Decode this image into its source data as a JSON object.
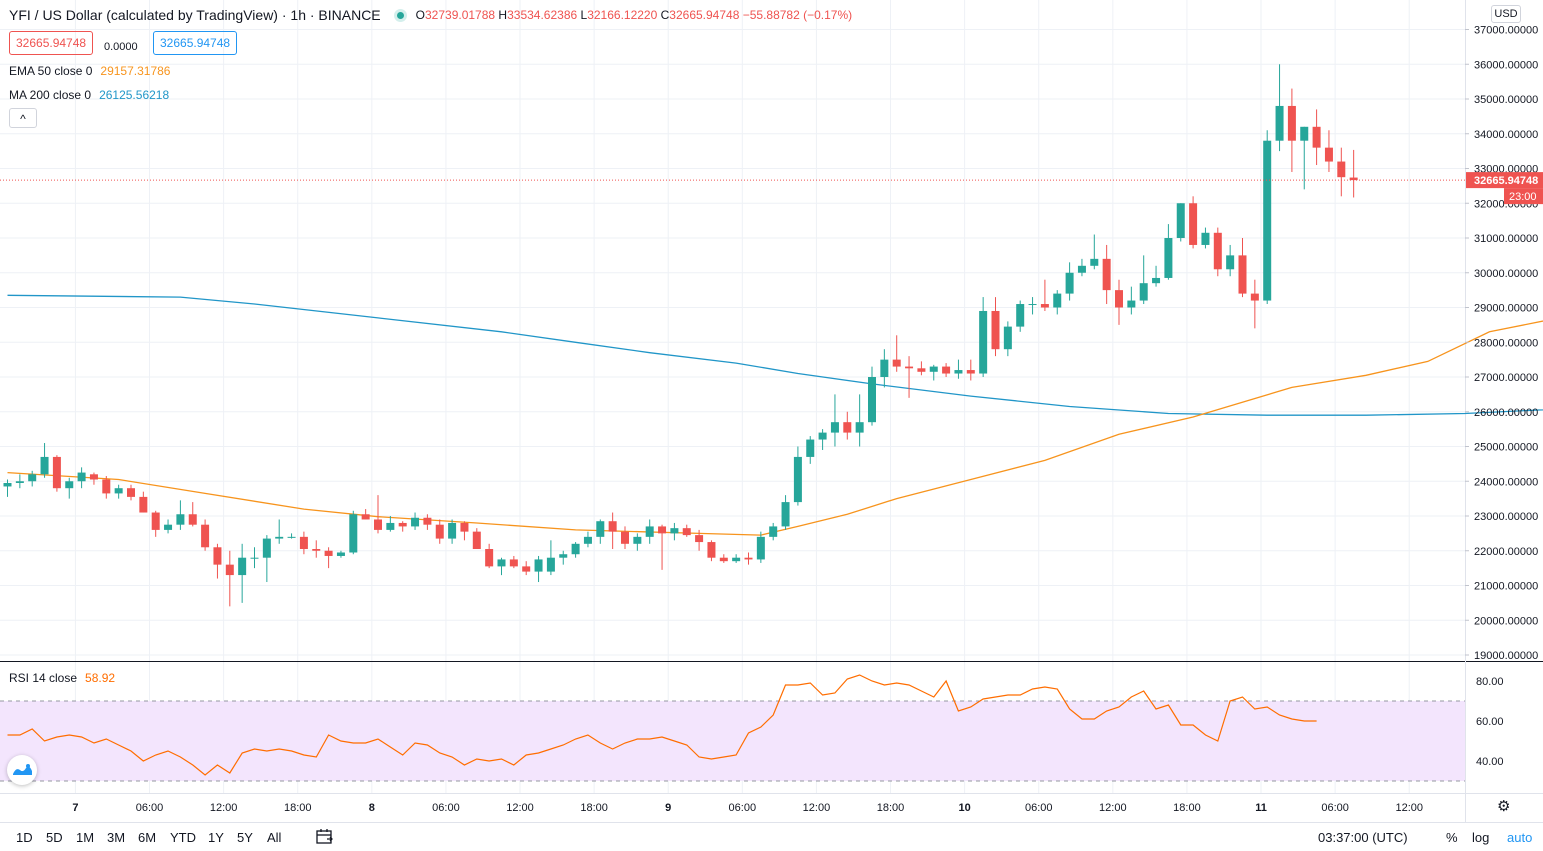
{
  "header": {
    "title": "YFI / US Dollar (calculated by TradingView) · 1h · BINANCE",
    "open_label": "O",
    "open": "32739.01788",
    "high_label": "H",
    "high": "33534.62386",
    "low_label": "L",
    "low": "32166.12220",
    "close_label": "C",
    "close": "32665.94748",
    "change": "−55.88782 (−0.17%)"
  },
  "price_boxes": {
    "bid": "32665.94748",
    "spread": "0.0000",
    "ask": "32665.94748"
  },
  "indicators": [
    {
      "name": "EMA 50 close 0",
      "value": "29157.31786",
      "color": "#f7941d"
    },
    {
      "name": "MA 200 close 0",
      "value": "26125.56218",
      "color": "#2196c8"
    }
  ],
  "collapse_icon": "chevron-up-icon",
  "collapse_glyph": "^",
  "currency": "USD",
  "last_price_label": "32665.94748",
  "countdown": "23:00",
  "rsi": {
    "name": "RSI 14 close",
    "value": "58.92"
  },
  "time_axis": [
    {
      "label": "7",
      "bold": true
    },
    {
      "label": "06:00"
    },
    {
      "label": "12:00"
    },
    {
      "label": "18:00"
    },
    {
      "label": "8",
      "bold": true
    },
    {
      "label": "06:00"
    },
    {
      "label": "12:00"
    },
    {
      "label": "18:00"
    },
    {
      "label": "9",
      "bold": true
    },
    {
      "label": "06:00"
    },
    {
      "label": "12:00"
    },
    {
      "label": "18:00"
    },
    {
      "label": "10",
      "bold": true
    },
    {
      "label": "06:00"
    },
    {
      "label": "12:00"
    },
    {
      "label": "18:00"
    },
    {
      "label": "11",
      "bold": true
    },
    {
      "label": "06:00"
    },
    {
      "label": "12:00"
    }
  ],
  "bottom_bar": {
    "ranges": [
      "1D",
      "5D",
      "1M",
      "3M",
      "6M",
      "YTD",
      "1Y",
      "5Y",
      "All"
    ],
    "time": "03:37:00 (UTC)",
    "percent": "%",
    "log": "log",
    "auto": "auto"
  },
  "colors": {
    "up": "#26a69a",
    "down": "#ef5350",
    "ema": "#f7941d",
    "ma": "#2196c8",
    "rsi": "#ff6d00",
    "rsi_band": "#f3e5fd"
  },
  "chart_data": {
    "type": "candlestick",
    "symbol": "YFI/USD",
    "interval": "1h",
    "y_ticks": [
      "37000.00000",
      "36000.00000",
      "35000.00000",
      "34000.00000",
      "33000.00000",
      "32000.00000",
      "31000.00000",
      "30000.00000",
      "29000.00000",
      "28000.00000",
      "27000.00000",
      "26000.00000",
      "25000.00000",
      "24000.00000",
      "23000.00000",
      "22000.00000",
      "21000.00000",
      "20000.00000",
      "19000.00000"
    ],
    "ylim": [
      18800,
      37400
    ],
    "last_price": 32665.94748,
    "candles": [
      [
        23850,
        24050,
        23550,
        23950
      ],
      [
        23950,
        24200,
        23800,
        24000
      ],
      [
        24000,
        24300,
        23850,
        24200
      ],
      [
        24200,
        25100,
        24100,
        24700
      ],
      [
        24700,
        24750,
        23700,
        23800
      ],
      [
        23800,
        24100,
        23500,
        24000
      ],
      [
        24000,
        24400,
        23800,
        24250
      ],
      [
        24200,
        24250,
        23900,
        24050
      ],
      [
        24050,
        24150,
        23500,
        23650
      ],
      [
        23650,
        23900,
        23500,
        23800
      ],
      [
        23800,
        23900,
        23450,
        23550
      ],
      [
        23550,
        23700,
        23100,
        23100
      ],
      [
        23100,
        23150,
        22400,
        22600
      ],
      [
        22600,
        22900,
        22500,
        22750
      ],
      [
        22750,
        23450,
        22600,
        23050
      ],
      [
        23050,
        23400,
        22700,
        22750
      ],
      [
        22750,
        22900,
        22000,
        22100
      ],
      [
        22100,
        22200,
        21200,
        21600
      ],
      [
        21600,
        22000,
        20400,
        21300
      ],
      [
        21300,
        22200,
        20500,
        21800
      ],
      [
        21800,
        22100,
        21500,
        21800
      ],
      [
        21800,
        22450,
        21100,
        22350
      ],
      [
        22350,
        22900,
        22200,
        22400
      ],
      [
        22400,
        22500,
        22350,
        22400
      ],
      [
        22400,
        22550,
        21900,
        22050
      ],
      [
        22050,
        22300,
        21800,
        22000
      ],
      [
        22000,
        22100,
        21500,
        21850
      ],
      [
        21850,
        22000,
        21800,
        21950
      ],
      [
        21950,
        23150,
        21900,
        23050
      ],
      [
        23050,
        23200,
        22900,
        22900
      ],
      [
        22900,
        23600,
        22500,
        22600
      ],
      [
        22600,
        23000,
        22550,
        22800
      ],
      [
        22800,
        22850,
        22550,
        22700
      ],
      [
        22700,
        23100,
        22600,
        22950
      ],
      [
        22950,
        23050,
        22600,
        22750
      ],
      [
        22750,
        22900,
        22200,
        22350
      ],
      [
        22350,
        22900,
        22200,
        22800
      ],
      [
        22800,
        22850,
        22300,
        22550
      ],
      [
        22550,
        22650,
        22050,
        22050
      ],
      [
        22050,
        22200,
        21500,
        21550
      ],
      [
        21550,
        21800,
        21300,
        21750
      ],
      [
        21750,
        21850,
        21500,
        21550
      ],
      [
        21550,
        21700,
        21300,
        21400
      ],
      [
        21400,
        21850,
        21100,
        21750
      ],
      [
        21400,
        22300,
        21300,
        21800
      ],
      [
        21800,
        22000,
        21600,
        21900
      ],
      [
        21900,
        22250,
        21800,
        22200
      ],
      [
        22200,
        22550,
        22100,
        22400
      ],
      [
        22400,
        22900,
        22200,
        22850
      ],
      [
        22850,
        23100,
        22050,
        22550
      ],
      [
        22550,
        22700,
        22050,
        22200
      ],
      [
        22200,
        22500,
        22000,
        22400
      ],
      [
        22400,
        22900,
        22200,
        22700
      ],
      [
        22700,
        22750,
        21450,
        22500
      ],
      [
        22500,
        22800,
        22300,
        22650
      ],
      [
        22650,
        22750,
        22400,
        22450
      ],
      [
        22450,
        22600,
        22000,
        22250
      ],
      [
        22250,
        22300,
        21700,
        21800
      ],
      [
        21800,
        21900,
        21650,
        21700
      ],
      [
        21700,
        21900,
        21650,
        21800
      ],
      [
        21800,
        21950,
        21600,
        21750
      ],
      [
        21750,
        22550,
        21650,
        22400
      ],
      [
        22400,
        22800,
        22300,
        22700
      ],
      [
        22700,
        23600,
        22600,
        23400
      ],
      [
        23400,
        25000,
        23300,
        24700
      ],
      [
        24700,
        25300,
        24500,
        25200
      ],
      [
        25200,
        25500,
        24900,
        25400
      ],
      [
        25400,
        26500,
        25000,
        25700
      ],
      [
        25700,
        26000,
        25200,
        25400
      ],
      [
        25400,
        26500,
        25000,
        25700
      ],
      [
        25700,
        27300,
        25600,
        27000
      ],
      [
        27000,
        27800,
        26700,
        27500
      ],
      [
        27500,
        28200,
        27150,
        27300
      ],
      [
        27300,
        27600,
        26400,
        27250
      ],
      [
        27250,
        27450,
        27050,
        27150
      ],
      [
        27150,
        27350,
        26900,
        27300
      ],
      [
        27300,
        27400,
        27000,
        27100
      ],
      [
        27100,
        27500,
        26950,
        27200
      ],
      [
        27200,
        27500,
        26900,
        27100
      ],
      [
        27100,
        29300,
        27000,
        28900
      ],
      [
        28900,
        29300,
        27600,
        27800
      ],
      [
        27800,
        28600,
        27600,
        28450
      ],
      [
        28450,
        29200,
        28300,
        29100
      ],
      [
        29100,
        29300,
        28800,
        29100
      ],
      [
        29100,
        29800,
        28900,
        29000
      ],
      [
        29000,
        29500,
        28800,
        29400
      ],
      [
        29400,
        30300,
        29200,
        30000
      ],
      [
        30000,
        30400,
        29900,
        30200
      ],
      [
        30200,
        31100,
        30100,
        30400
      ],
      [
        30400,
        30800,
        29100,
        29500
      ],
      [
        29500,
        29800,
        28500,
        29000
      ],
      [
        29000,
        29600,
        28800,
        29200
      ],
      [
        29200,
        30500,
        29100,
        29700
      ],
      [
        29700,
        30200,
        29600,
        29850
      ],
      [
        29850,
        31400,
        29800,
        31000
      ],
      [
        31000,
        32000,
        30900,
        32000
      ],
      [
        32000,
        32200,
        30700,
        30800
      ],
      [
        30800,
        31300,
        30700,
        31150
      ],
      [
        31150,
        31300,
        29900,
        30100
      ],
      [
        30100,
        30800,
        29900,
        30500
      ],
      [
        30500,
        31000,
        29300,
        29400
      ],
      [
        29400,
        29800,
        28400,
        29200
      ],
      [
        29200,
        34100,
        29100,
        33800
      ],
      [
        33800,
        36000,
        33500,
        34800
      ],
      [
        34800,
        35300,
        32900,
        33800
      ],
      [
        33800,
        34200,
        32400,
        34200
      ],
      [
        34200,
        34700,
        33100,
        33600
      ],
      [
        33600,
        34100,
        32900,
        33200
      ],
      [
        33200,
        33600,
        32200,
        32750
      ],
      [
        32739.01788,
        33534.62386,
        32166.1222,
        32665.94748
      ]
    ],
    "ema50": [
      [
        0,
        24250
      ],
      [
        9,
        24050
      ],
      [
        16,
        23650
      ],
      [
        24,
        23200
      ],
      [
        30,
        22980
      ],
      [
        38,
        22800
      ],
      [
        46,
        22600
      ],
      [
        56,
        22500
      ],
      [
        61,
        22450
      ],
      [
        64,
        22700
      ],
      [
        68,
        23050
      ],
      [
        72,
        23500
      ],
      [
        78,
        24050
      ],
      [
        84,
        24600
      ],
      [
        90,
        25350
      ],
      [
        96,
        25850
      ],
      [
        104,
        26700
      ],
      [
        110,
        27050
      ],
      [
        115,
        27450
      ],
      [
        120,
        28300
      ],
      [
        127,
        28800
      ],
      [
        132,
        29157.31786
      ]
    ],
    "ma200": [
      [
        0,
        29350
      ],
      [
        14,
        29300
      ],
      [
        20,
        29100
      ],
      [
        30,
        28700
      ],
      [
        40,
        28300
      ],
      [
        46,
        28000
      ],
      [
        52,
        27700
      ],
      [
        59,
        27400
      ],
      [
        64,
        27100
      ],
      [
        70,
        26800
      ],
      [
        78,
        26450
      ],
      [
        86,
        26150
      ],
      [
        94,
        25950
      ],
      [
        102,
        25900
      ],
      [
        110,
        25900
      ],
      [
        118,
        25950
      ],
      [
        124,
        26050
      ],
      [
        132,
        26125.56218
      ]
    ],
    "rsi": {
      "ylim": [
        25,
        90
      ],
      "ticks": [
        "80.00",
        "60.00",
        "40.00"
      ],
      "bands": [
        30,
        70
      ],
      "values": [
        53,
        53,
        56,
        50,
        52,
        53,
        52,
        49,
        51,
        48,
        45,
        40,
        43,
        45,
        42,
        38,
        33,
        38,
        34,
        44,
        46,
        45,
        46,
        45,
        43,
        42,
        53,
        50,
        49,
        49,
        51,
        47,
        43,
        49,
        48,
        44,
        42,
        38,
        41,
        40,
        41,
        38,
        43,
        44,
        46,
        48,
        51,
        53,
        49,
        46,
        49,
        51,
        51,
        52,
        50,
        48,
        42,
        41,
        42,
        43,
        54,
        57,
        63,
        78,
        78,
        79,
        73,
        74,
        81,
        83,
        80,
        78,
        79,
        78,
        75,
        72,
        80,
        65,
        67,
        71,
        72,
        73,
        73,
        76,
        77,
        76,
        66,
        61,
        61,
        65,
        67,
        72,
        75,
        66,
        68,
        58,
        58,
        53,
        50,
        70,
        72,
        66,
        67,
        63,
        61,
        60,
        60
      ]
    },
    "x_ticks_candle_index": [
      6,
      12,
      18,
      24,
      30,
      36,
      42,
      48,
      54,
      60,
      66,
      72,
      78,
      84,
      90,
      96,
      102,
      108,
      114
    ],
    "xlabel": "",
    "ylabel": ""
  }
}
